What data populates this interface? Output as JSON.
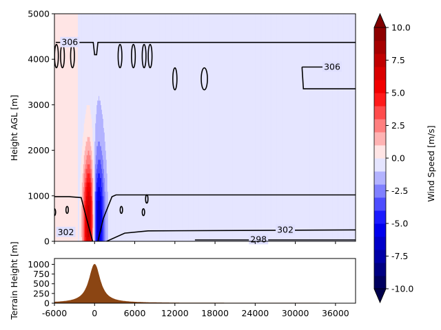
{
  "chart_data": [
    {
      "type": "heatmap",
      "ylabel": "Height AGL [m]",
      "x_ticks_shared": [
        -6000,
        0,
        6000,
        12000,
        18000,
        24000,
        30000,
        36000
      ],
      "xlim": [
        -6000,
        39000
      ],
      "ylim": [
        0,
        5000
      ],
      "y_ticks": [
        0,
        1000,
        2000,
        3000,
        4000,
        5000
      ],
      "field": "wind speed (filled contours)",
      "background_value": -0.6,
      "positive_lobe": {
        "x_center": -800,
        "peak_value": 9,
        "z_peak": 500
      },
      "negative_lobe": {
        "x_center": 500,
        "peak_value": -7,
        "z_peak": 500
      },
      "contour_labels": [
        {
          "text": "306",
          "x": -3700,
          "z": 4370
        },
        {
          "text": "306",
          "x": 35500,
          "z": 3830
        },
        {
          "text": "302",
          "x": -4300,
          "z": 200
        },
        {
          "text": "302",
          "x": 28500,
          "z": 250
        },
        {
          "text": "298",
          "x": 24500,
          "z": 40
        }
      ],
      "contour_lines": [
        {
          "name": "upper",
          "points": [
            [
              -5800,
              4370
            ],
            [
              -200,
              4370
            ],
            [
              0,
              4100
            ],
            [
              300,
              4100
            ],
            [
              500,
              4370
            ],
            [
              39000,
              4370
            ]
          ]
        },
        {
          "name": "right-step",
          "points": [
            [
              31000,
              3830
            ],
            [
              35500,
              3830
            ]
          ]
        },
        {
          "name": "right-step-lower",
          "points": [
            [
              31000,
              3830
            ],
            [
              31200,
              3350
            ],
            [
              39000,
              3350
            ]
          ]
        },
        {
          "name": "boundary-layer-top",
          "points": [
            [
              -6000,
              980
            ],
            [
              -3800,
              980
            ],
            [
              -2000,
              960
            ],
            [
              -1200,
              500
            ],
            [
              -300,
              0
            ]
          ]
        },
        {
          "name": "boundary-layer-top-right",
          "points": [
            [
              500,
              0
            ],
            [
              1300,
              500
            ],
            [
              2600,
              980
            ],
            [
              3200,
              1020
            ],
            [
              39000,
              1020
            ]
          ]
        },
        {
          "name": "lower-302",
          "points": [
            [
              1800,
              0
            ],
            [
              4500,
              180
            ],
            [
              8000,
              230
            ],
            [
              39000,
              250
            ]
          ]
        },
        {
          "name": "lower-298",
          "points": [
            [
              15000,
              30
            ],
            [
              39000,
              30
            ]
          ]
        }
      ]
    },
    {
      "type": "area",
      "ylabel": "Terrain Height [m]",
      "xlabel": "",
      "xlim": [
        -6000,
        39000
      ],
      "ylim": [
        0,
        1150
      ],
      "x_ticks": [
        -6000,
        0,
        6000,
        12000,
        18000,
        24000,
        30000,
        36000
      ],
      "y_ticks": [
        0,
        250,
        500,
        750,
        1000
      ],
      "shape": "witch of Agnesi",
      "peak_height": 1000,
      "peak_x": 0,
      "half_width": 1000,
      "color": "#8b4513"
    }
  ],
  "colorbar": {
    "label": "Wind Speed [m/s]",
    "ticks": [
      10.0,
      7.5,
      5.0,
      2.5,
      0.0,
      -2.5,
      -5.0,
      -7.5,
      -10.0
    ],
    "range": [
      -10,
      10
    ],
    "colormap": "seismic",
    "extend": "both"
  }
}
